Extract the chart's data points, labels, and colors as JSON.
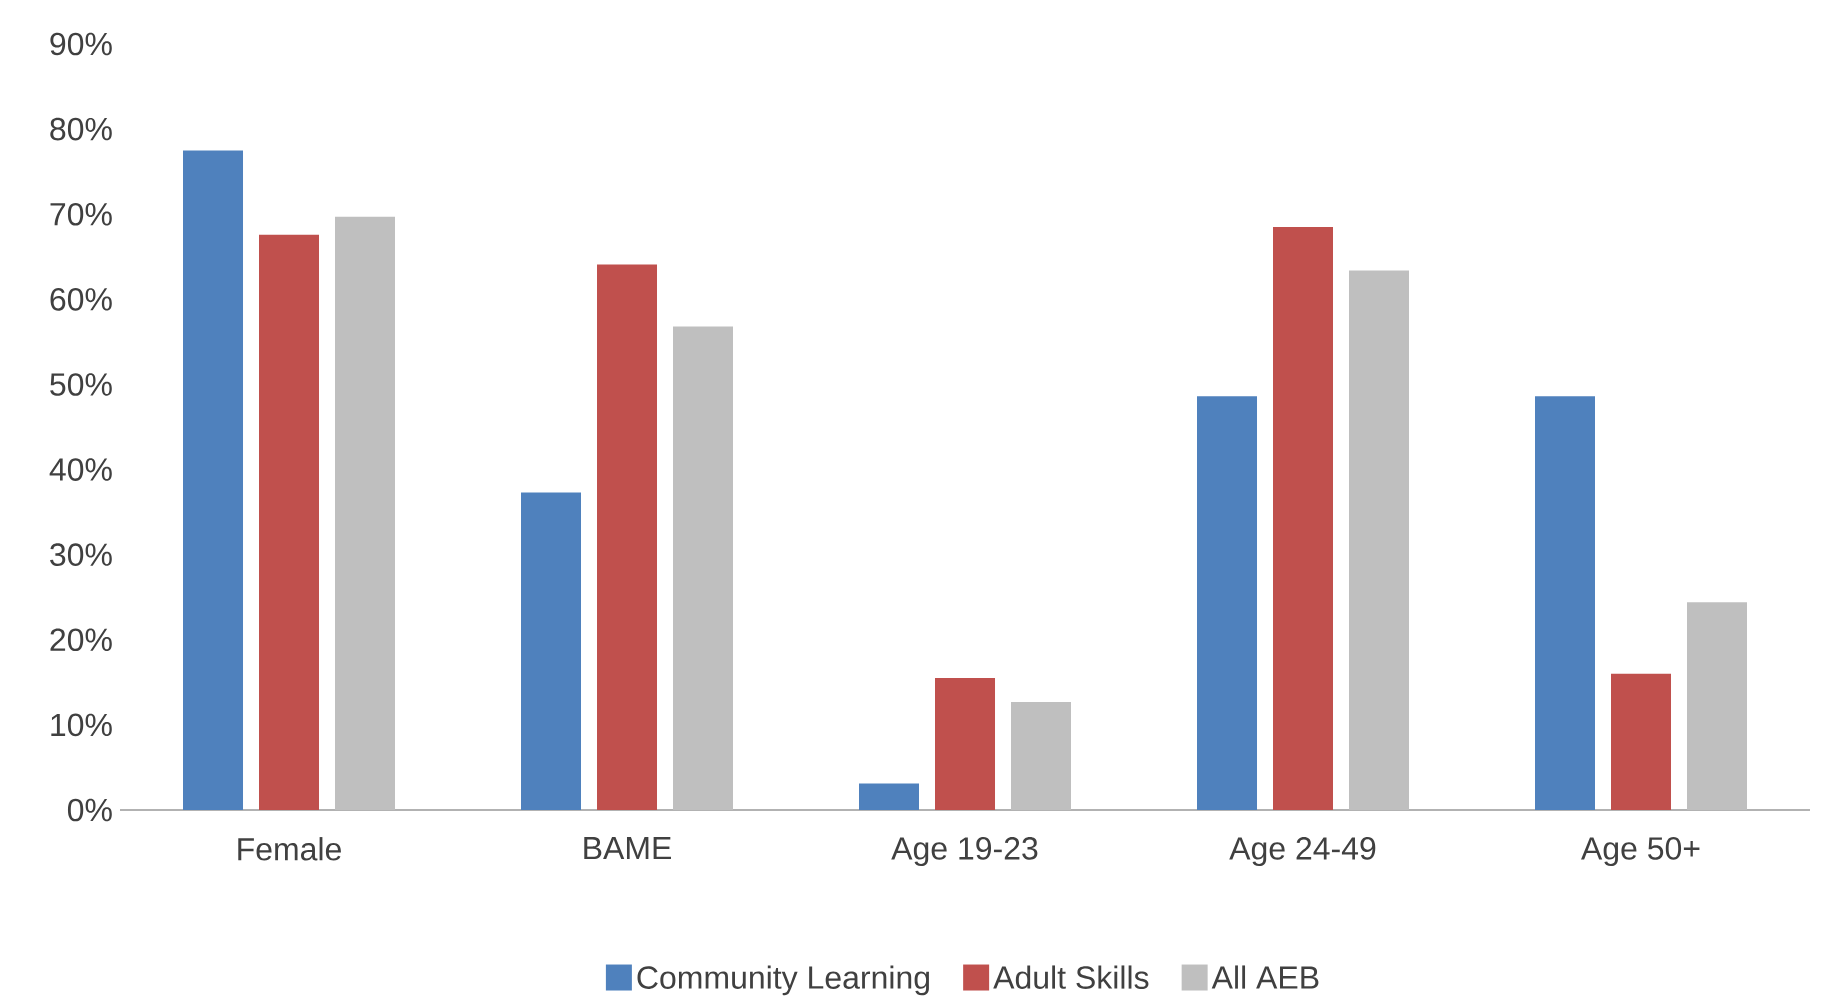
{
  "chart_data": {
    "type": "bar",
    "categories": [
      "Female",
      "BAME",
      "Age 19-23",
      "Age 24-49",
      "Age 50+"
    ],
    "series": [
      {
        "name": "Community Learning",
        "color": "#4f81bd",
        "values": [
          77.5,
          37.3,
          3.1,
          48.6,
          48.6
        ]
      },
      {
        "name": "Adult Skills",
        "color": "#c0504d",
        "values": [
          67.6,
          64.1,
          15.5,
          68.5,
          16.0
        ]
      },
      {
        "name": "All AEB",
        "color": "#bfbfbf",
        "values": [
          69.7,
          56.8,
          12.7,
          63.4,
          24.4
        ]
      }
    ],
    "ylim": [
      0,
      90
    ],
    "yticks": [
      {
        "value": 0,
        "label": "0%"
      },
      {
        "value": 10,
        "label": "10%"
      },
      {
        "value": 20,
        "label": "20%"
      },
      {
        "value": 30,
        "label": "30%"
      },
      {
        "value": 40,
        "label": "40%"
      },
      {
        "value": 50,
        "label": "50%"
      },
      {
        "value": 60,
        "label": "60%"
      },
      {
        "value": 70,
        "label": "70%"
      },
      {
        "value": 80,
        "label": "80%"
      },
      {
        "value": 90,
        "label": "90%"
      }
    ],
    "grid": false,
    "legend": "bottom"
  }
}
